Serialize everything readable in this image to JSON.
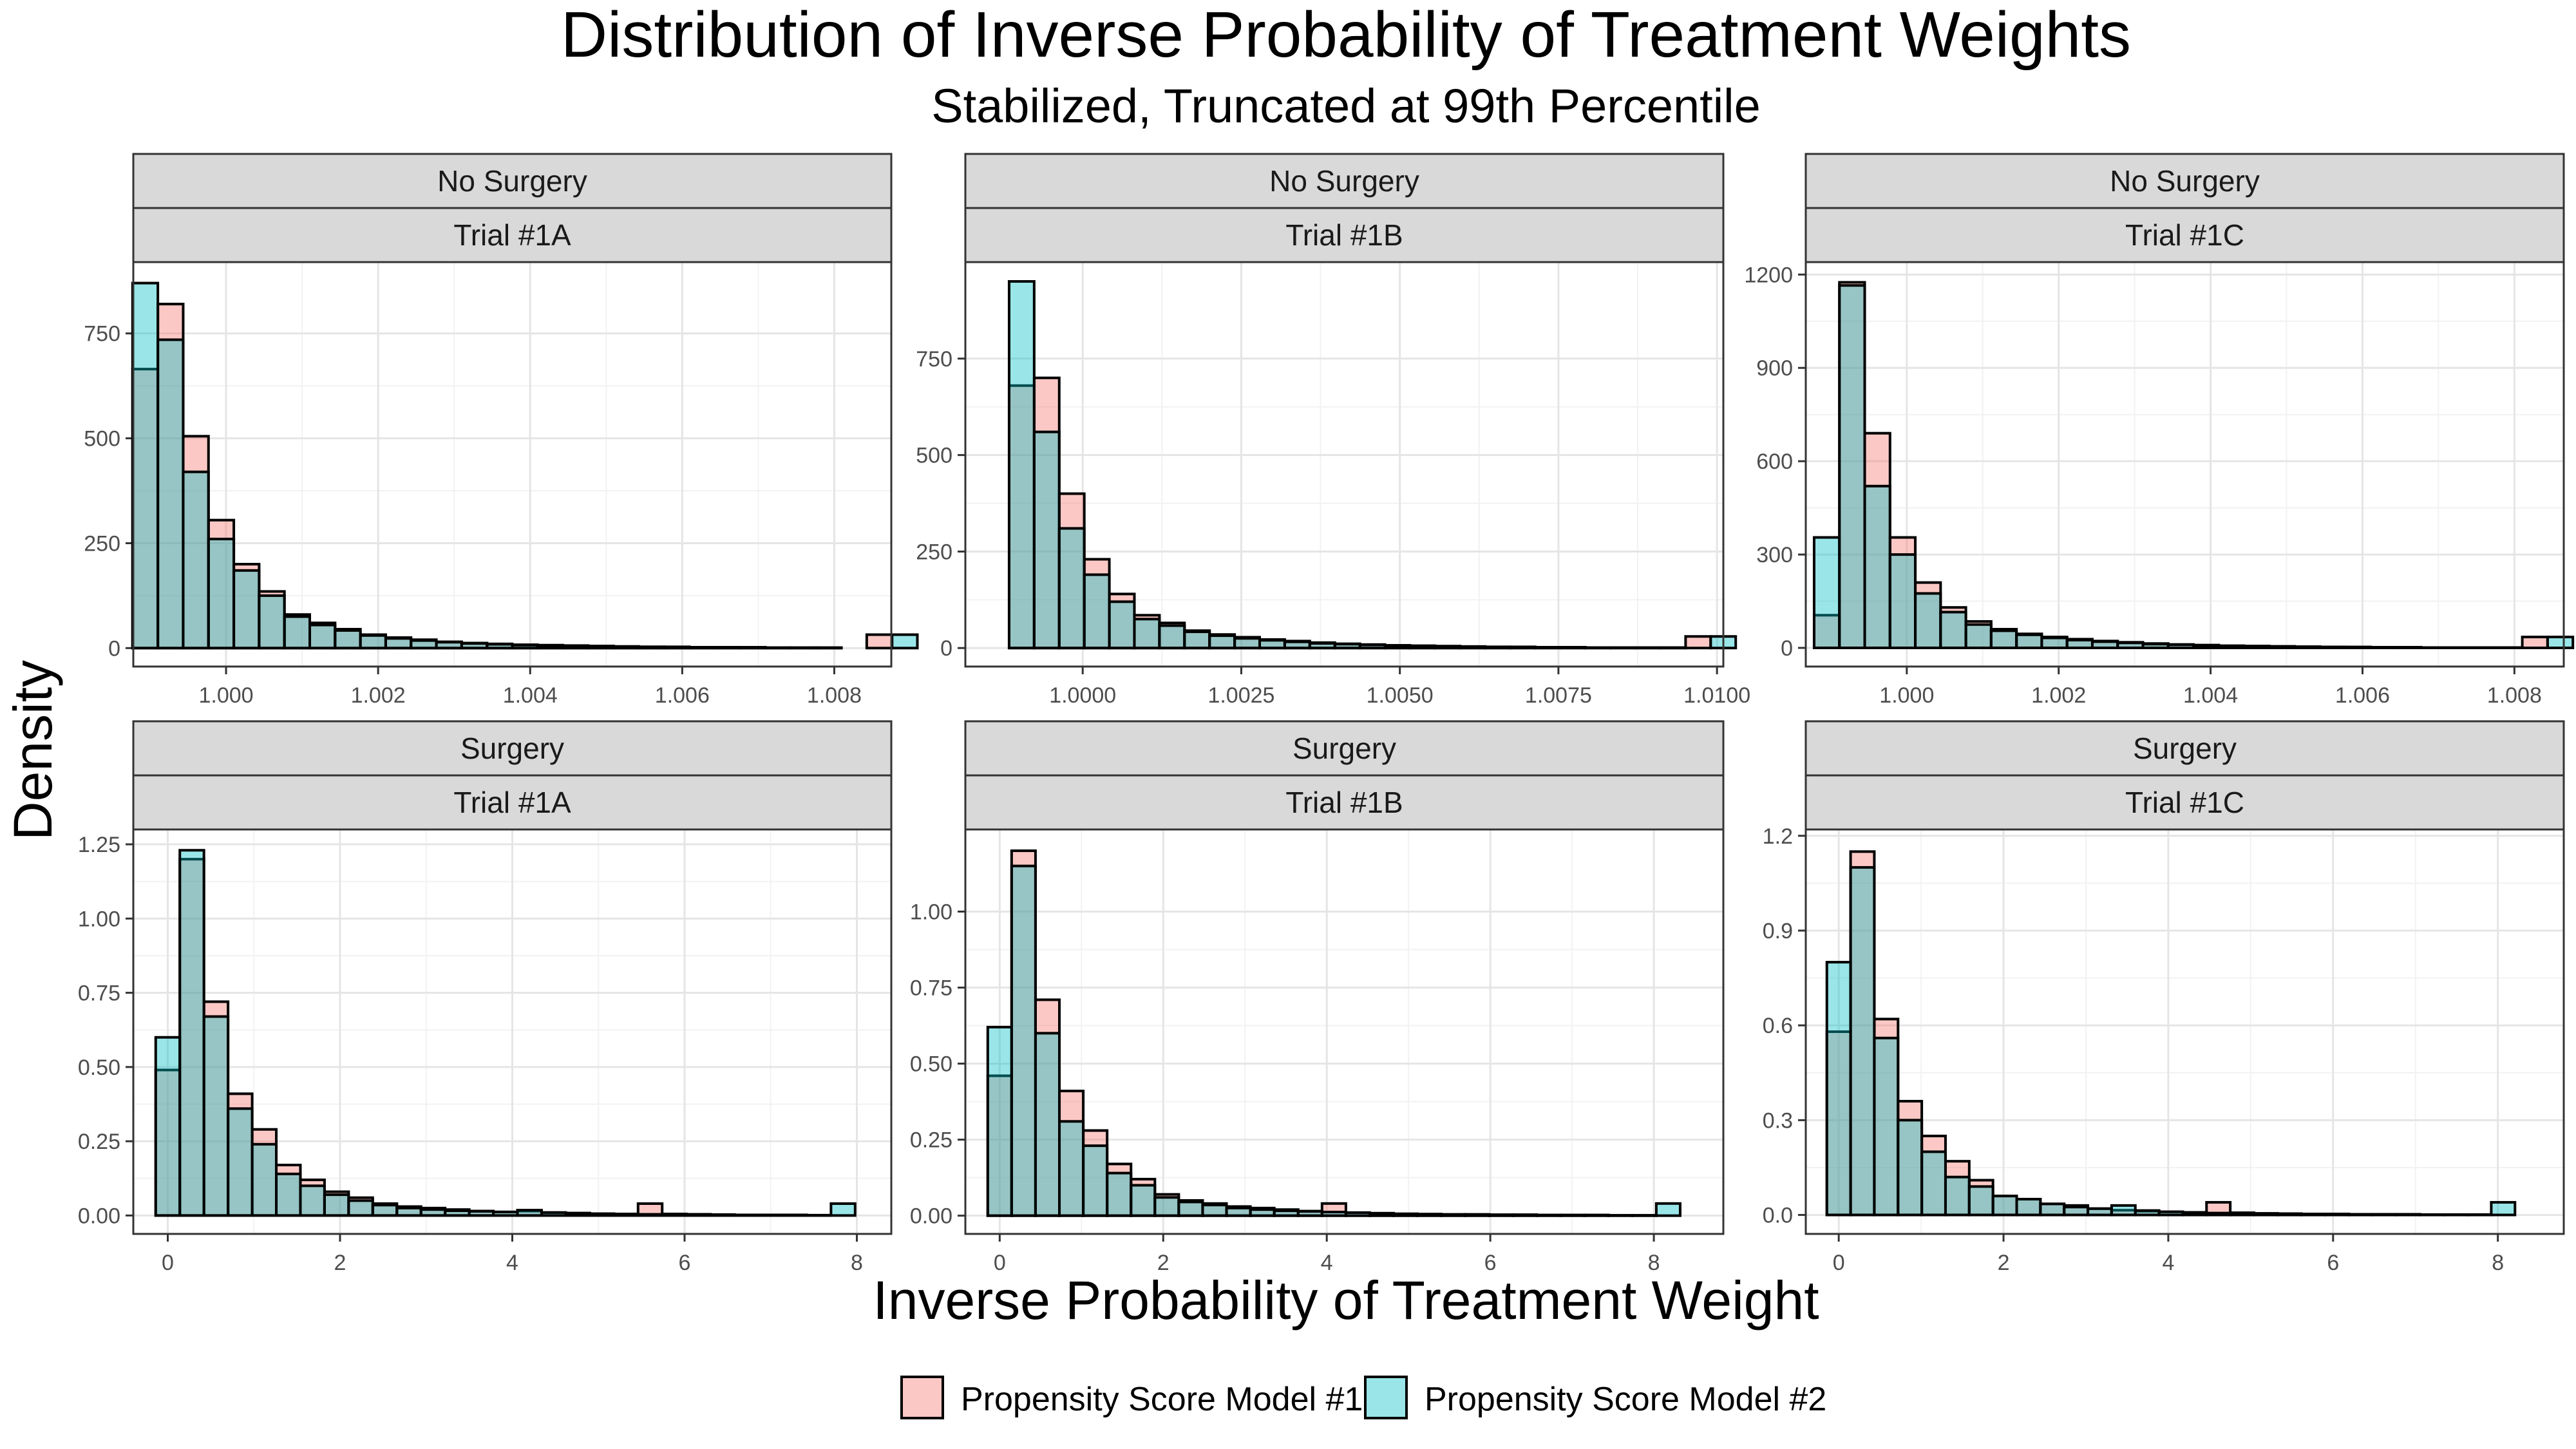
{
  "title": "Distribution of Inverse Probability of Treatment Weights",
  "subtitle": "Stabilized, Truncated at 99th Percentile",
  "xlabel": "Inverse Probability of Treatment Weight",
  "ylabel": "Density",
  "legend": {
    "placement": "bottom",
    "items": [
      {
        "label": "Propensity Score Model #1",
        "color": "#F8766D"
      },
      {
        "label": "Propensity Score Model #2",
        "color": "#00BFC4"
      }
    ]
  },
  "chart_data": [
    {
      "type": "bar",
      "row_label": "No Surgery",
      "col_label": "Trial #1A",
      "xlim": [
        0.99878,
        1.00875
      ],
      "x_ticks": [
        1.0,
        1.002,
        1.004,
        1.006,
        1.008
      ],
      "x_tick_labels": [
        "1.000",
        "1.002",
        "1.004",
        "1.006",
        "1.008"
      ],
      "ylim": [
        -44,
        920
      ],
      "y_ticks": [
        0,
        250,
        500,
        750
      ],
      "y_tick_labels": [
        "0",
        "250",
        "500",
        "750"
      ],
      "bin_start": 0.99877,
      "bin_width": 0.000333,
      "series": [
        {
          "name": "Propensity Score Model #1",
          "values": [
            665,
            820,
            505,
            305,
            200,
            135,
            80,
            60,
            45,
            32,
            25,
            20,
            15,
            12,
            10,
            8,
            7,
            6,
            5,
            4,
            3,
            3,
            2,
            2,
            2,
            1,
            1,
            1,
            0,
            32,
            0
          ]
        },
        {
          "name": "Propensity Score Model #2",
          "values": [
            870,
            735,
            420,
            260,
            185,
            125,
            75,
            55,
            42,
            30,
            23,
            18,
            14,
            11,
            9,
            7,
            6,
            5,
            4,
            3,
            3,
            2,
            2,
            2,
            1,
            1,
            1,
            1,
            0,
            0,
            32
          ]
        }
      ]
    },
    {
      "type": "bar",
      "row_label": "No Surgery",
      "col_label": "Trial #1B",
      "xlim": [
        0.99815,
        1.0101
      ],
      "x_ticks": [
        1.0,
        1.0025,
        1.005,
        1.0075,
        1.01
      ],
      "x_tick_labels": [
        "1.0000",
        "1.0025",
        "1.0050",
        "1.0075",
        "1.0100"
      ],
      "ylim": [
        -48,
        1000
      ],
      "y_ticks": [
        0,
        250,
        500,
        750
      ],
      "y_tick_labels": [
        "0",
        "250",
        "500",
        "750"
      ],
      "bin_start": 0.99805,
      "bin_width": 0.000395,
      "series": [
        {
          "name": "Propensity Score Model #1",
          "values": [
            0,
            0,
            680,
            700,
            400,
            230,
            140,
            85,
            65,
            45,
            35,
            28,
            22,
            18,
            14,
            11,
            9,
            7,
            6,
            5,
            4,
            3,
            3,
            2,
            2,
            1,
            1,
            1,
            1,
            30,
            0
          ]
        },
        {
          "name": "Propensity Score Model #2",
          "values": [
            0,
            0,
            950,
            560,
            310,
            190,
            120,
            75,
            58,
            42,
            32,
            25,
            20,
            16,
            12,
            10,
            8,
            6,
            5,
            4,
            3,
            3,
            2,
            2,
            2,
            1,
            1,
            1,
            1,
            0,
            30
          ]
        }
      ]
    },
    {
      "type": "bar",
      "row_label": "No Surgery",
      "col_label": "Trial #1C",
      "xlim": [
        0.99867,
        1.00865
      ],
      "x_ticks": [
        1.0,
        1.002,
        1.004,
        1.006,
        1.008
      ],
      "x_tick_labels": [
        "1.000",
        "1.002",
        "1.004",
        "1.006",
        "1.008"
      ],
      "ylim": [
        -60,
        1240
      ],
      "y_ticks": [
        0,
        300,
        600,
        900,
        1200
      ],
      "y_tick_labels": [
        "0",
        "300",
        "600",
        "900",
        "1200"
      ],
      "bin_start": 0.99878,
      "bin_width": 0.000333,
      "series": [
        {
          "name": "Propensity Score Model #1",
          "values": [
            105,
            1175,
            690,
            355,
            210,
            130,
            85,
            60,
            45,
            35,
            28,
            22,
            18,
            14,
            11,
            9,
            7,
            6,
            5,
            4,
            3,
            3,
            2,
            2,
            1,
            1,
            1,
            1,
            35,
            0
          ]
        },
        {
          "name": "Propensity Score Model #2",
          "values": [
            355,
            1165,
            520,
            300,
            175,
            115,
            75,
            55,
            42,
            32,
            25,
            20,
            16,
            12,
            10,
            8,
            6,
            5,
            4,
            3,
            3,
            2,
            2,
            2,
            1,
            1,
            1,
            1,
            0,
            35
          ]
        }
      ]
    },
    {
      "type": "bar",
      "row_label": "Surgery",
      "col_label": "Trial #1A",
      "xlim": [
        -0.4,
        8.4
      ],
      "x_ticks": [
        0,
        2,
        4,
        6,
        8
      ],
      "x_tick_labels": [
        "0",
        "2",
        "4",
        "6",
        "8"
      ],
      "ylim": [
        -0.062,
        1.3
      ],
      "y_ticks": [
        0,
        0.25,
        0.5,
        0.75,
        1.0,
        1.25
      ],
      "y_tick_labels": [
        "0.00",
        "0.25",
        "0.50",
        "0.75",
        "1.00",
        "1.25"
      ],
      "bin_start": -0.14,
      "bin_width": 0.28,
      "series": [
        {
          "name": "Propensity Score Model #1",
          "values": [
            0.49,
            1.2,
            0.72,
            0.41,
            0.29,
            0.17,
            0.12,
            0.08,
            0.06,
            0.04,
            0.03,
            0.025,
            0.02,
            0.015,
            0.012,
            0.015,
            0.01,
            0.008,
            0.006,
            0.005,
            0.04,
            0.005,
            0.004,
            0.003,
            0.002,
            0.002,
            0.002,
            0.001,
            0,
            0
          ]
        },
        {
          "name": "Propensity Score Model #2",
          "values": [
            0.6,
            1.23,
            0.67,
            0.36,
            0.24,
            0.14,
            0.1,
            0.07,
            0.05,
            0.035,
            0.025,
            0.02,
            0.016,
            0.014,
            0.012,
            0.018,
            0.01,
            0.008,
            0.006,
            0.005,
            0.004,
            0.005,
            0.004,
            0.003,
            0.002,
            0.002,
            0.002,
            0.001,
            0.04,
            0
          ]
        }
      ]
    },
    {
      "type": "bar",
      "row_label": "Surgery",
      "col_label": "Trial #1B",
      "xlim": [
        -0.42,
        8.85
      ],
      "x_ticks": [
        0,
        2,
        4,
        6,
        8
      ],
      "x_tick_labels": [
        "0",
        "2",
        "4",
        "6",
        "8"
      ],
      "ylim": [
        -0.06,
        1.27
      ],
      "y_ticks": [
        0,
        0.25,
        0.5,
        0.75,
        1.0
      ],
      "y_tick_labels": [
        "0.00",
        "0.25",
        "0.50",
        "0.75",
        "1.00"
      ],
      "bin_start": -0.146,
      "bin_width": 0.292,
      "series": [
        {
          "name": "Propensity Score Model #1",
          "values": [
            0.46,
            1.2,
            0.71,
            0.41,
            0.28,
            0.17,
            0.12,
            0.07,
            0.05,
            0.04,
            0.03,
            0.025,
            0.02,
            0.015,
            0.04,
            0.01,
            0.008,
            0.006,
            0.005,
            0.004,
            0.004,
            0.003,
            0.003,
            0.002,
            0.002,
            0.002,
            0.001,
            0.001,
            0,
            0
          ]
        },
        {
          "name": "Propensity Score Model #2",
          "values": [
            0.62,
            1.15,
            0.6,
            0.31,
            0.23,
            0.14,
            0.1,
            0.06,
            0.045,
            0.035,
            0.025,
            0.02,
            0.016,
            0.014,
            0.012,
            0.01,
            0.008,
            0.006,
            0.005,
            0.004,
            0.004,
            0.003,
            0.003,
            0.002,
            0.002,
            0.002,
            0.001,
            0.001,
            0.04,
            0
          ]
        }
      ]
    },
    {
      "type": "bar",
      "row_label": "Surgery",
      "col_label": "Trial #1C",
      "xlim": [
        -0.4,
        8.8
      ],
      "x_ticks": [
        0,
        2,
        4,
        6,
        8
      ],
      "x_tick_labels": [
        "0",
        "2",
        "4",
        "6",
        "8"
      ],
      "ylim": [
        -0.06,
        1.22
      ],
      "y_ticks": [
        0,
        0.3,
        0.6,
        0.9,
        1.2
      ],
      "y_tick_labels": [
        "0.0",
        "0.3",
        "0.6",
        "0.9",
        "1.2"
      ],
      "bin_start": -0.144,
      "bin_width": 0.288,
      "series": [
        {
          "name": "Propensity Score Model #1",
          "values": [
            0.58,
            1.15,
            0.62,
            0.36,
            0.25,
            0.17,
            0.11,
            0.06,
            0.05,
            0.035,
            0.03,
            0.02,
            0.015,
            0.012,
            0.01,
            0.008,
            0.04,
            0.007,
            0.005,
            0.004,
            0.003,
            0.003,
            0.002,
            0.002,
            0.002,
            0.001,
            0.001,
            0.001,
            0,
            0
          ]
        },
        {
          "name": "Propensity Score Model #2",
          "values": [
            0.8,
            1.1,
            0.56,
            0.3,
            0.2,
            0.12,
            0.09,
            0.06,
            0.05,
            0.035,
            0.025,
            0.02,
            0.03,
            0.014,
            0.01,
            0.008,
            0.006,
            0.005,
            0.004,
            0.004,
            0.003,
            0.003,
            0.002,
            0.002,
            0.002,
            0.001,
            0.001,
            0.001,
            0.04,
            0
          ]
        }
      ]
    }
  ]
}
